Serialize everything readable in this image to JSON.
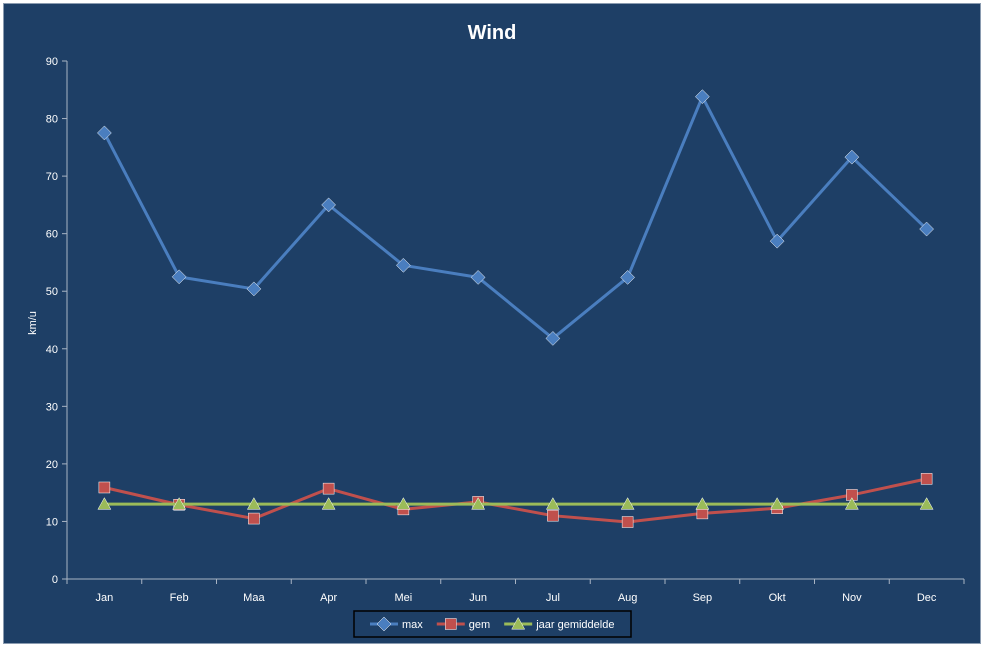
{
  "chart_data": {
    "type": "line",
    "title": "Wind",
    "xlabel": "",
    "ylabel": "km/u",
    "ylim": [
      0,
      90
    ],
    "yticks": [
      0,
      10,
      20,
      30,
      40,
      50,
      60,
      70,
      80,
      90
    ],
    "categories": [
      "Jan",
      "Feb",
      "Maa",
      "Apr",
      "Mei",
      "Jun",
      "Jul",
      "Aug",
      "Sep",
      "Okt",
      "Nov",
      "Dec"
    ],
    "grid": false,
    "legend_position": "bottom",
    "series": [
      {
        "name": "max",
        "color": "#4a7ebf",
        "marker": "diamond",
        "values": [
          77.5,
          52.5,
          50.4,
          65,
          54.5,
          52.4,
          41.8,
          52.4,
          83.8,
          58.7,
          73.3,
          60.8
        ]
      },
      {
        "name": "gem",
        "color": "#c0504d",
        "marker": "square",
        "values": [
          15.9,
          12.9,
          10.5,
          15.7,
          12.1,
          13.4,
          11,
          9.9,
          11.4,
          12.3,
          14.6,
          17.4
        ]
      },
      {
        "name": "jaar gemiddelde",
        "color": "#9bbb59",
        "marker": "triangle",
        "values": [
          13,
          13,
          13,
          13,
          13,
          13,
          13,
          13,
          13,
          13,
          13,
          13
        ]
      }
    ]
  }
}
